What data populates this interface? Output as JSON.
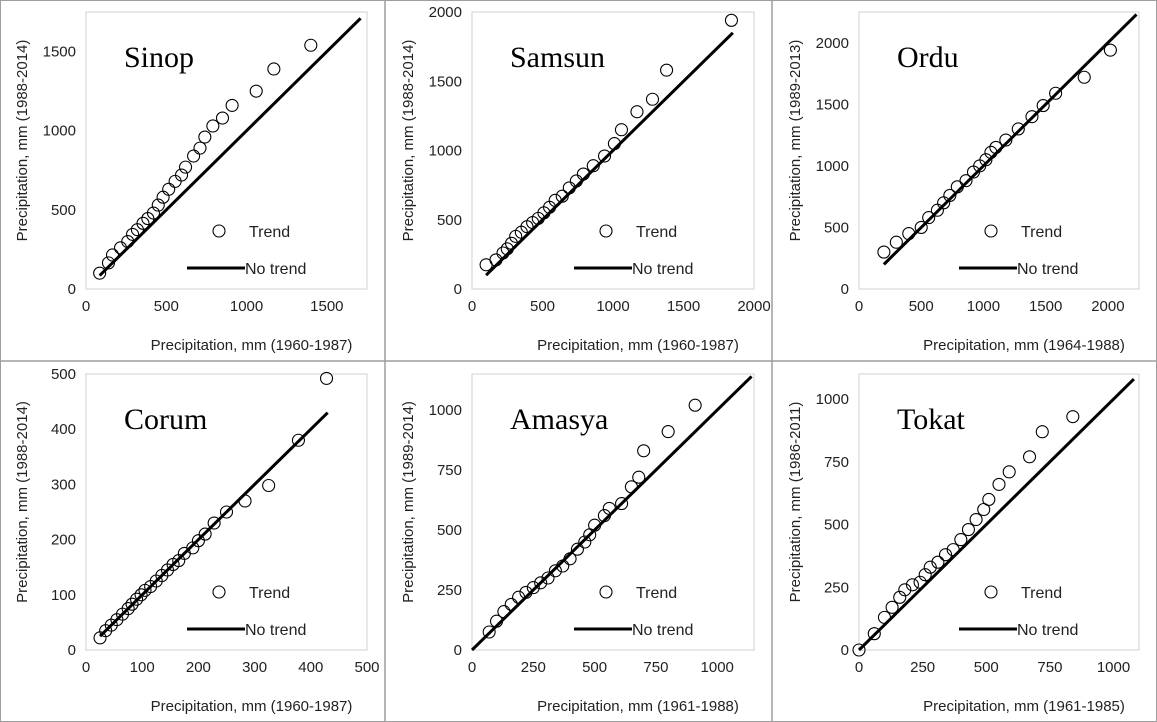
{
  "chart_data": [
    {
      "type": "scatter",
      "title": "Sinop",
      "xlabel": "Precipitation, mm (1960-1987)",
      "ylabel": "Precipitation, mm (1988-2014)",
      "xlim": [
        0,
        1750
      ],
      "ylim": [
        0,
        1750
      ],
      "xticks": [
        0,
        500,
        1000,
        1500
      ],
      "yticks": [
        0,
        500,
        1000,
        1500
      ],
      "legend_position": "bottom-right",
      "series": [
        {
          "name": "Trend",
          "marker": "open-circle",
          "x": [
            85,
            140,
            165,
            215,
            260,
            290,
            320,
            355,
            385,
            420,
            450,
            480,
            515,
            555,
            595,
            620,
            670,
            710,
            740,
            790,
            850,
            910,
            1060,
            1170,
            1400
          ],
          "y": [
            100,
            165,
            215,
            260,
            300,
            345,
            375,
            415,
            445,
            480,
            530,
            580,
            630,
            680,
            720,
            770,
            840,
            890,
            960,
            1030,
            1080,
            1160,
            1250,
            1390,
            1540
          ]
        },
        {
          "name": "No trend",
          "marker": "line",
          "x": [
            85,
            1710
          ],
          "y": [
            85,
            1710
          ]
        }
      ]
    },
    {
      "type": "scatter",
      "title": "Samsun",
      "xlabel": "Precipitation, mm (1960-1987)",
      "ylabel": "Precipitation, mm (1988-2014)",
      "xlim": [
        0,
        2000
      ],
      "ylim": [
        0,
        2000
      ],
      "xticks": [
        0,
        500,
        1000,
        1500,
        2000
      ],
      "yticks": [
        0,
        500,
        1000,
        1500,
        2000
      ],
      "legend_position": "bottom-right",
      "series": [
        {
          "name": "Trend",
          "marker": "open-circle",
          "x": [
            100,
            170,
            220,
            250,
            280,
            310,
            350,
            390,
            430,
            470,
            510,
            550,
            590,
            640,
            690,
            740,
            790,
            860,
            940,
            1010,
            1060,
            1170,
            1280,
            1380,
            1840
          ],
          "y": [
            175,
            210,
            260,
            290,
            330,
            380,
            410,
            450,
            480,
            510,
            550,
            590,
            640,
            670,
            730,
            780,
            830,
            890,
            960,
            1050,
            1150,
            1280,
            1370,
            1580,
            1940
          ]
        },
        {
          "name": "No trend",
          "marker": "line",
          "x": [
            100,
            1850
          ],
          "y": [
            100,
            1850
          ]
        }
      ]
    },
    {
      "type": "scatter",
      "title": "Ordu",
      "xlabel": "Precipitation, mm (1964-1988)",
      "ylabel": "Precipitation, mm (1989-2013)",
      "xlim": [
        0,
        2250
      ],
      "ylim": [
        0,
        2250
      ],
      "xticks": [
        0,
        500,
        1000,
        1500,
        2000
      ],
      "yticks": [
        0,
        500,
        1000,
        1500,
        2000
      ],
      "legend_position": "bottom-right",
      "series": [
        {
          "name": "Trend",
          "marker": "open-circle",
          "x": [
            200,
            300,
            400,
            500,
            560,
            630,
            680,
            730,
            790,
            860,
            920,
            970,
            1020,
            1060,
            1100,
            1180,
            1280,
            1390,
            1480,
            1580,
            1810,
            2020
          ],
          "y": [
            300,
            380,
            450,
            500,
            580,
            640,
            700,
            760,
            830,
            880,
            950,
            1000,
            1050,
            1110,
            1150,
            1210,
            1300,
            1400,
            1490,
            1590,
            1720,
            1940
          ]
        },
        {
          "name": "No trend",
          "marker": "line",
          "x": [
            200,
            2230
          ],
          "y": [
            200,
            2230
          ]
        }
      ]
    },
    {
      "type": "scatter",
      "title": "Corum",
      "xlabel": "Precipitation, mm (1960-1987)",
      "ylabel": "Precipitation, mm (1988-2014)",
      "xlim": [
        0,
        500
      ],
      "ylim": [
        0,
        500
      ],
      "xticks": [
        0,
        100,
        200,
        300,
        400,
        500
      ],
      "yticks": [
        0,
        100,
        200,
        300,
        400,
        500
      ],
      "legend_position": "bottom-right",
      "series": [
        {
          "name": "Trend",
          "marker": "open-circle",
          "x": [
            25,
            35,
            45,
            55,
            65,
            75,
            82,
            90,
            98,
            105,
            115,
            125,
            135,
            145,
            155,
            165,
            175,
            190,
            200,
            212,
            228,
            250,
            283,
            325,
            378,
            428
          ],
          "y": [
            22,
            35,
            45,
            55,
            65,
            75,
            83,
            92,
            100,
            108,
            115,
            125,
            135,
            145,
            155,
            162,
            175,
            185,
            198,
            210,
            230,
            250,
            270,
            298,
            380,
            492
          ]
        },
        {
          "name": "No trend",
          "marker": "line",
          "x": [
            25,
            430
          ],
          "y": [
            25,
            430
          ]
        }
      ]
    },
    {
      "type": "scatter",
      "title": "Amasya",
      "xlabel": "Precipitation, mm (1961-1988)",
      "ylabel": "Precipitation, mm (1989-2014)",
      "xlim": [
        0,
        1150
      ],
      "ylim": [
        0,
        1150
      ],
      "xticks": [
        0,
        250,
        500,
        750,
        1000
      ],
      "yticks": [
        0,
        250,
        500,
        750,
        1000
      ],
      "legend_position": "bottom-right",
      "series": [
        {
          "name": "Trend",
          "marker": "open-circle",
          "x": [
            70,
            100,
            130,
            160,
            190,
            220,
            250,
            280,
            310,
            340,
            370,
            400,
            430,
            460,
            480,
            500,
            540,
            560,
            610,
            650,
            680,
            700,
            800,
            910
          ],
          "y": [
            75,
            120,
            160,
            190,
            220,
            240,
            260,
            280,
            300,
            330,
            350,
            380,
            420,
            450,
            480,
            520,
            560,
            590,
            610,
            680,
            720,
            830,
            910,
            1020
          ]
        },
        {
          "name": "No trend",
          "marker": "line",
          "x": [
            0,
            1140
          ],
          "y": [
            0,
            1140
          ]
        }
      ]
    },
    {
      "type": "scatter",
      "title": "Tokat",
      "xlabel": "Precipitation, mm (1961-1985)",
      "ylabel": "Precipitation, mm (1986-2011)",
      "xlim": [
        0,
        1100
      ],
      "ylim": [
        0,
        1100
      ],
      "xticks": [
        0,
        250,
        500,
        750,
        1000
      ],
      "yticks": [
        0,
        250,
        500,
        750,
        1000
      ],
      "legend_position": "bottom-right",
      "series": [
        {
          "name": "Trend",
          "marker": "open-circle",
          "x": [
            0,
            60,
            100,
            130,
            160,
            180,
            210,
            240,
            260,
            280,
            310,
            340,
            370,
            400,
            430,
            460,
            490,
            510,
            550,
            590,
            670,
            720,
            840
          ],
          "y": [
            0,
            65,
            130,
            170,
            210,
            240,
            260,
            270,
            300,
            330,
            350,
            380,
            400,
            440,
            480,
            520,
            560,
            600,
            660,
            710,
            770,
            870,
            930
          ]
        },
        {
          "name": "No trend",
          "marker": "line",
          "x": [
            0,
            1080
          ],
          "y": [
            0,
            1080
          ]
        }
      ]
    }
  ]
}
